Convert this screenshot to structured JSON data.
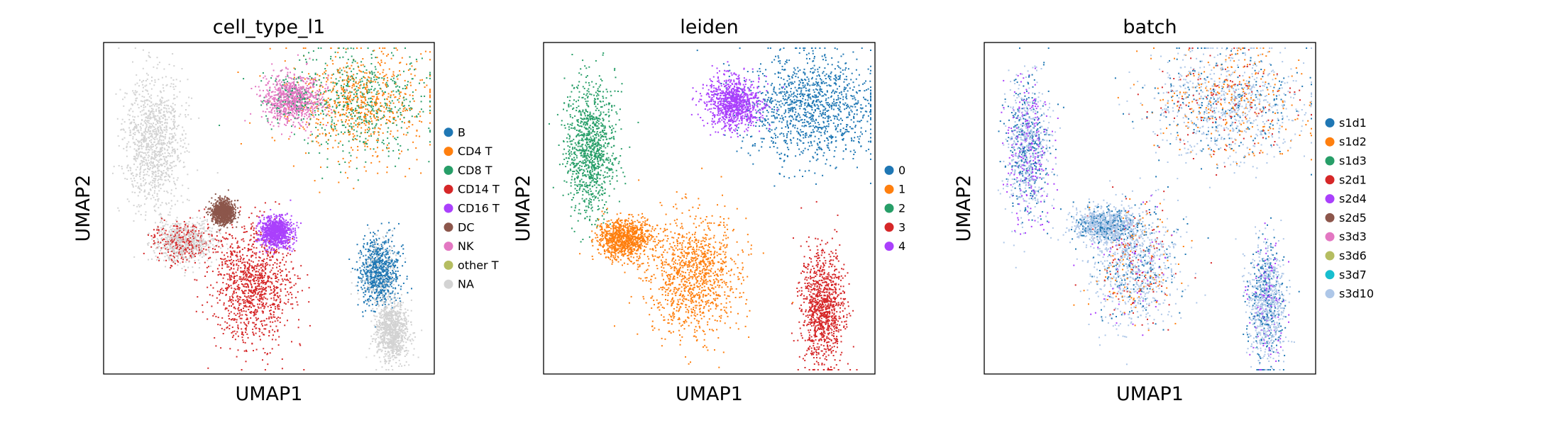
{
  "chart_data": [
    {
      "type": "scatter",
      "title": "cell_type_l1",
      "xlabel": "UMAP1",
      "ylabel": "UMAP2",
      "xticks": [],
      "yticks": [],
      "grid": false,
      "legend_placement": "right",
      "legend": [
        {
          "label": "B",
          "color": "#1f77b4"
        },
        {
          "label": "CD4 T",
          "color": "#ff7f0e"
        },
        {
          "label": "CD8 T",
          "color": "#279e68"
        },
        {
          "label": "CD14 T",
          "color": "#d62728"
        },
        {
          "label": "CD16 T",
          "color": "#aa40fc"
        },
        {
          "label": "DC",
          "color": "#8c564b"
        },
        {
          "label": "NK",
          "color": "#e377c2"
        },
        {
          "label": "other T",
          "color": "#b5bd61"
        },
        {
          "label": "NA",
          "color": "#d3d3d3"
        }
      ],
      "clusters": [
        {
          "cx": 0.77,
          "cy": 0.82,
          "rx": 0.21,
          "ry": 0.16,
          "mix": [
            [
              1,
              0.55
            ],
            [
              2,
              0.45
            ]
          ]
        },
        {
          "cx": 0.57,
          "cy": 0.83,
          "rx": 0.085,
          "ry": 0.075,
          "mix": [
            [
              6,
              0.85
            ],
            [
              2,
              0.15
            ]
          ]
        },
        {
          "cx": 0.15,
          "cy": 0.7,
          "rx": 0.09,
          "ry": 0.2,
          "mix": [
            [
              8,
              1.0
            ]
          ]
        },
        {
          "cx": 0.24,
          "cy": 0.4,
          "rx": 0.09,
          "ry": 0.06,
          "mix": [
            [
              8,
              0.7
            ],
            [
              3,
              0.3
            ]
          ]
        },
        {
          "cx": 0.45,
          "cy": 0.27,
          "rx": 0.12,
          "ry": 0.18,
          "mix": [
            [
              3,
              1.0
            ]
          ]
        },
        {
          "cx": 0.36,
          "cy": 0.49,
          "rx": 0.035,
          "ry": 0.035,
          "mix": [
            [
              5,
              1.0
            ]
          ]
        },
        {
          "cx": 0.52,
          "cy": 0.43,
          "rx": 0.045,
          "ry": 0.045,
          "mix": [
            [
              4,
              1.0
            ]
          ]
        },
        {
          "cx": 0.83,
          "cy": 0.31,
          "rx": 0.06,
          "ry": 0.1,
          "mix": [
            [
              0,
              0.8
            ],
            [
              8,
              0.2
            ]
          ]
        },
        {
          "cx": 0.87,
          "cy": 0.13,
          "rx": 0.05,
          "ry": 0.09,
          "mix": [
            [
              8,
              1.0
            ]
          ]
        }
      ]
    },
    {
      "type": "scatter",
      "title": "leiden",
      "xlabel": "UMAP1",
      "ylabel": "UMAP2",
      "xticks": [],
      "yticks": [],
      "grid": false,
      "legend_placement": "right",
      "legend": [
        {
          "label": "0",
          "color": "#1f77b4"
        },
        {
          "label": "1",
          "color": "#ff7f0e"
        },
        {
          "label": "2",
          "color": "#279e68"
        },
        {
          "label": "3",
          "color": "#d62728"
        },
        {
          "label": "4",
          "color": "#aa40fc"
        }
      ],
      "clusters": [
        {
          "cx": 0.8,
          "cy": 0.81,
          "rx": 0.2,
          "ry": 0.16,
          "mix": [
            [
              0,
              1.0
            ]
          ]
        },
        {
          "cx": 0.57,
          "cy": 0.82,
          "rx": 0.08,
          "ry": 0.075,
          "mix": [
            [
              4,
              1.0
            ]
          ]
        },
        {
          "cx": 0.14,
          "cy": 0.68,
          "rx": 0.075,
          "ry": 0.2,
          "mix": [
            [
              2,
              1.0
            ]
          ]
        },
        {
          "cx": 0.45,
          "cy": 0.3,
          "rx": 0.14,
          "ry": 0.18,
          "mix": [
            [
              1,
              1.0
            ]
          ]
        },
        {
          "cx": 0.24,
          "cy": 0.41,
          "rx": 0.08,
          "ry": 0.06,
          "mix": [
            [
              1,
              1.0
            ]
          ]
        },
        {
          "cx": 0.84,
          "cy": 0.2,
          "rx": 0.065,
          "ry": 0.17,
          "mix": [
            [
              3,
              1.0
            ]
          ]
        }
      ]
    },
    {
      "type": "scatter",
      "title": "batch",
      "xlabel": "UMAP1",
      "ylabel": "UMAP2",
      "xticks": [],
      "yticks": [],
      "grid": false,
      "legend_placement": "right",
      "legend": [
        {
          "label": "s1d1",
          "color": "#1f77b4"
        },
        {
          "label": "s1d2",
          "color": "#ff7f0e"
        },
        {
          "label": "s1d3",
          "color": "#279e68"
        },
        {
          "label": "s2d1",
          "color": "#d62728"
        },
        {
          "label": "s2d4",
          "color": "#aa40fc"
        },
        {
          "label": "s2d5",
          "color": "#8c564b"
        },
        {
          "label": "s3d3",
          "color": "#e377c2"
        },
        {
          "label": "s3d6",
          "color": "#b5bd61"
        },
        {
          "label": "s3d7",
          "color": "#17becf"
        },
        {
          "label": "s3d10",
          "color": "#aec7e8"
        }
      ],
      "clusters": [
        {
          "cx": 0.74,
          "cy": 0.82,
          "rx": 0.23,
          "ry": 0.17,
          "mix": [
            [
              9,
              0.5
            ],
            [
              0,
              0.2
            ],
            [
              1,
              0.2
            ],
            [
              3,
              0.1
            ]
          ]
        },
        {
          "cx": 0.13,
          "cy": 0.68,
          "rx": 0.065,
          "ry": 0.21,
          "mix": [
            [
              9,
              0.45
            ],
            [
              0,
              0.3
            ],
            [
              4,
              0.25
            ]
          ]
        },
        {
          "cx": 0.45,
          "cy": 0.33,
          "rx": 0.13,
          "ry": 0.18,
          "mix": [
            [
              9,
              0.6
            ],
            [
              0,
              0.15
            ],
            [
              3,
              0.1
            ],
            [
              1,
              0.1
            ],
            [
              4,
              0.05
            ]
          ]
        },
        {
          "cx": 0.36,
          "cy": 0.45,
          "rx": 0.09,
          "ry": 0.05,
          "mix": [
            [
              9,
              0.8
            ],
            [
              0,
              0.2
            ]
          ]
        },
        {
          "cx": 0.85,
          "cy": 0.22,
          "rx": 0.055,
          "ry": 0.18,
          "mix": [
            [
              9,
              0.6
            ],
            [
              0,
              0.3
            ],
            [
              4,
              0.1
            ]
          ]
        }
      ]
    }
  ]
}
